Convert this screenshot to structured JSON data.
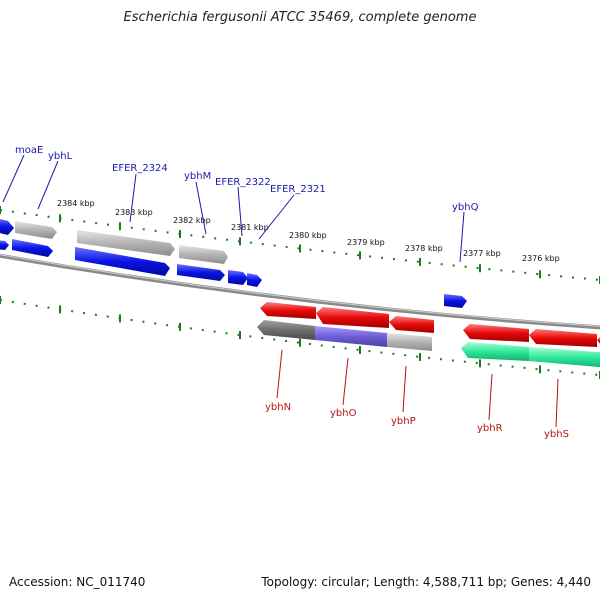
{
  "title": "Escherichia fergusonii ATCC 35469, complete genome",
  "footer": {
    "accession": "Accession: NC_011740",
    "summary": "Topology: circular; Length: 4,588,711 bp; Genes: 4,440"
  },
  "colors": {
    "background": "#ffffff",
    "backbone": "#888888",
    "tick": "#1f7a1f",
    "forward_label": "#1a1aa8",
    "reverse_label": "#b41414",
    "cog_blue": "#0a14e6",
    "cog_gray": "#b4b4b4",
    "cog_darkgray": "#6e6e6e",
    "cog_red": "#e60a0a",
    "cog_purple": "#6f5fd6",
    "cog_green": "#2ee89a"
  },
  "icons": {
    "gene_arrow": "gene-arrow-icon"
  },
  "kbp_labels": [
    "2384 kbp",
    "2383 kbp",
    "2382 kbp",
    "2381 kbp",
    "2380 kbp",
    "2379 kbp",
    "2378 kbp",
    "2377 kbp",
    "2376 kbp"
  ],
  "forward_gene_labels": [
    "moaE",
    "ybhL",
    "EFER_2324",
    "ybhM",
    "EFER_2322",
    "EFER_2321",
    "ybhQ"
  ],
  "reverse_gene_labels": [
    "ybhN",
    "ybhO",
    "ybhP",
    "ybhR",
    "ybhS"
  ]
}
